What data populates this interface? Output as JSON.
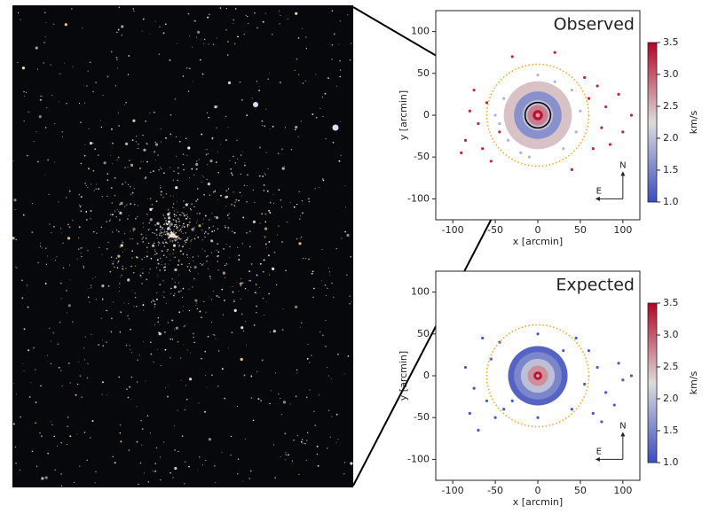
{
  "chart_data": [
    {
      "type": "scatter",
      "title": "Observed",
      "xlabel": "x [arcmin]",
      "ylabel": "y [arcmin]",
      "xlim": [
        -120,
        120
      ],
      "ylim": [
        -125,
        125
      ],
      "xticks": [
        -100,
        -50,
        0,
        50,
        100
      ],
      "yticks": [
        -100,
        -50,
        0,
        50,
        100
      ],
      "colorbar_label": "km/s",
      "clim": [
        1,
        3.5
      ],
      "cticks": [
        {
          "value": 1,
          "label": "1.0"
        },
        1.5,
        {
          "value": 2,
          "label": "2.0"
        },
        2.5,
        {
          "value": 3,
          "label": "3.0"
        },
        3.5
      ],
      "colormap": [
        "#3b4cc0",
        "#dddcdc",
        "#b40426"
      ],
      "reference_circle": {
        "radius": 60,
        "color": "#f5a623"
      },
      "zoom_circle_radius": 15,
      "compass": [
        "N",
        "E"
      ],
      "profile": {
        "r": [
          40,
          28,
          18,
          12,
          6,
          2.5
        ],
        "values": [
          2.4,
          1.6,
          2.0,
          2.8,
          3.4,
          2.6
        ]
      },
      "points": {
        "x": [
          -75,
          -80,
          -70,
          -65,
          -85,
          -55,
          -60,
          -45,
          60,
          70,
          80,
          95,
          110,
          75,
          65,
          100,
          55,
          -30,
          20,
          40,
          -90,
          85,
          -40,
          -45,
          -35,
          40,
          45,
          30,
          -20,
          20,
          0,
          -10,
          50,
          -50
        ],
        "y": [
          30,
          5,
          -10,
          -40,
          -30,
          -55,
          15,
          -20,
          20,
          35,
          10,
          25,
          0,
          -15,
          -40,
          -20,
          45,
          70,
          75,
          -65,
          -45,
          -35,
          20,
          -10,
          -30,
          30,
          -20,
          -40,
          -45,
          40,
          48,
          -50,
          5,
          0
        ],
        "values": [
          3.3,
          3.3,
          3.3,
          3.3,
          3.3,
          3.3,
          3.3,
          3.3,
          3.3,
          3.3,
          3.3,
          3.3,
          3.3,
          3.3,
          3.3,
          3.3,
          3.3,
          3.3,
          3.3,
          3.3,
          3.3,
          3.3,
          1.9,
          1.9,
          1.9,
          1.9,
          1.9,
          1.9,
          1.9,
          1.9,
          1.9,
          1.9,
          1.9,
          1.9
        ]
      }
    },
    {
      "type": "scatter",
      "title": "Expected",
      "xlabel": "x [arcmin]",
      "ylabel": "y [arcmin]",
      "xlim": [
        -120,
        120
      ],
      "ylim": [
        -125,
        125
      ],
      "xticks": [
        -100,
        -50,
        0,
        50,
        100
      ],
      "yticks": [
        -100,
        -50,
        0,
        50,
        100
      ],
      "colorbar_label": "km/s",
      "clim": [
        1,
        3.5
      ],
      "cticks": [
        {
          "value": 1,
          "label": "1.0"
        },
        1.5,
        {
          "value": 2,
          "label": "2.0"
        },
        2.5,
        {
          "value": 3,
          "label": "3.0"
        },
        3.5
      ],
      "colormap": [
        "#3b4cc0",
        "#dddcdc",
        "#b40426"
      ],
      "reference_circle": {
        "radius": 60,
        "color": "#f5a623"
      },
      "compass": [
        "N",
        "E"
      ],
      "profile": {
        "r": [
          35,
          28,
          20,
          12,
          5,
          2
        ],
        "values": [
          1.2,
          1.5,
          2.0,
          2.7,
          3.4,
          2.6
        ]
      },
      "points": {
        "x": [
          -75,
          -80,
          -70,
          -60,
          -55,
          -50,
          60,
          70,
          80,
          90,
          100,
          110,
          65,
          -45,
          45,
          -40,
          40,
          0,
          0,
          -30,
          30,
          55,
          -85,
          75,
          -65,
          95
        ],
        "y": [
          -15,
          -45,
          -65,
          -30,
          20,
          -50,
          30,
          10,
          -20,
          -35,
          -5,
          0,
          -45,
          40,
          45,
          -40,
          -40,
          50,
          -50,
          -30,
          30,
          -10,
          10,
          -55,
          45,
          15
        ],
        "values": [
          1.1,
          1.1,
          1.1,
          1.1,
          1.1,
          1.1,
          1.1,
          1.1,
          1.1,
          1.1,
          1.1,
          1.1,
          1.1,
          1.1,
          1.1,
          1.1,
          1.1,
          1.1,
          1.1,
          1.1,
          1.1,
          1.1,
          1.1,
          1.1,
          1.1,
          1.1
        ]
      }
    }
  ]
}
